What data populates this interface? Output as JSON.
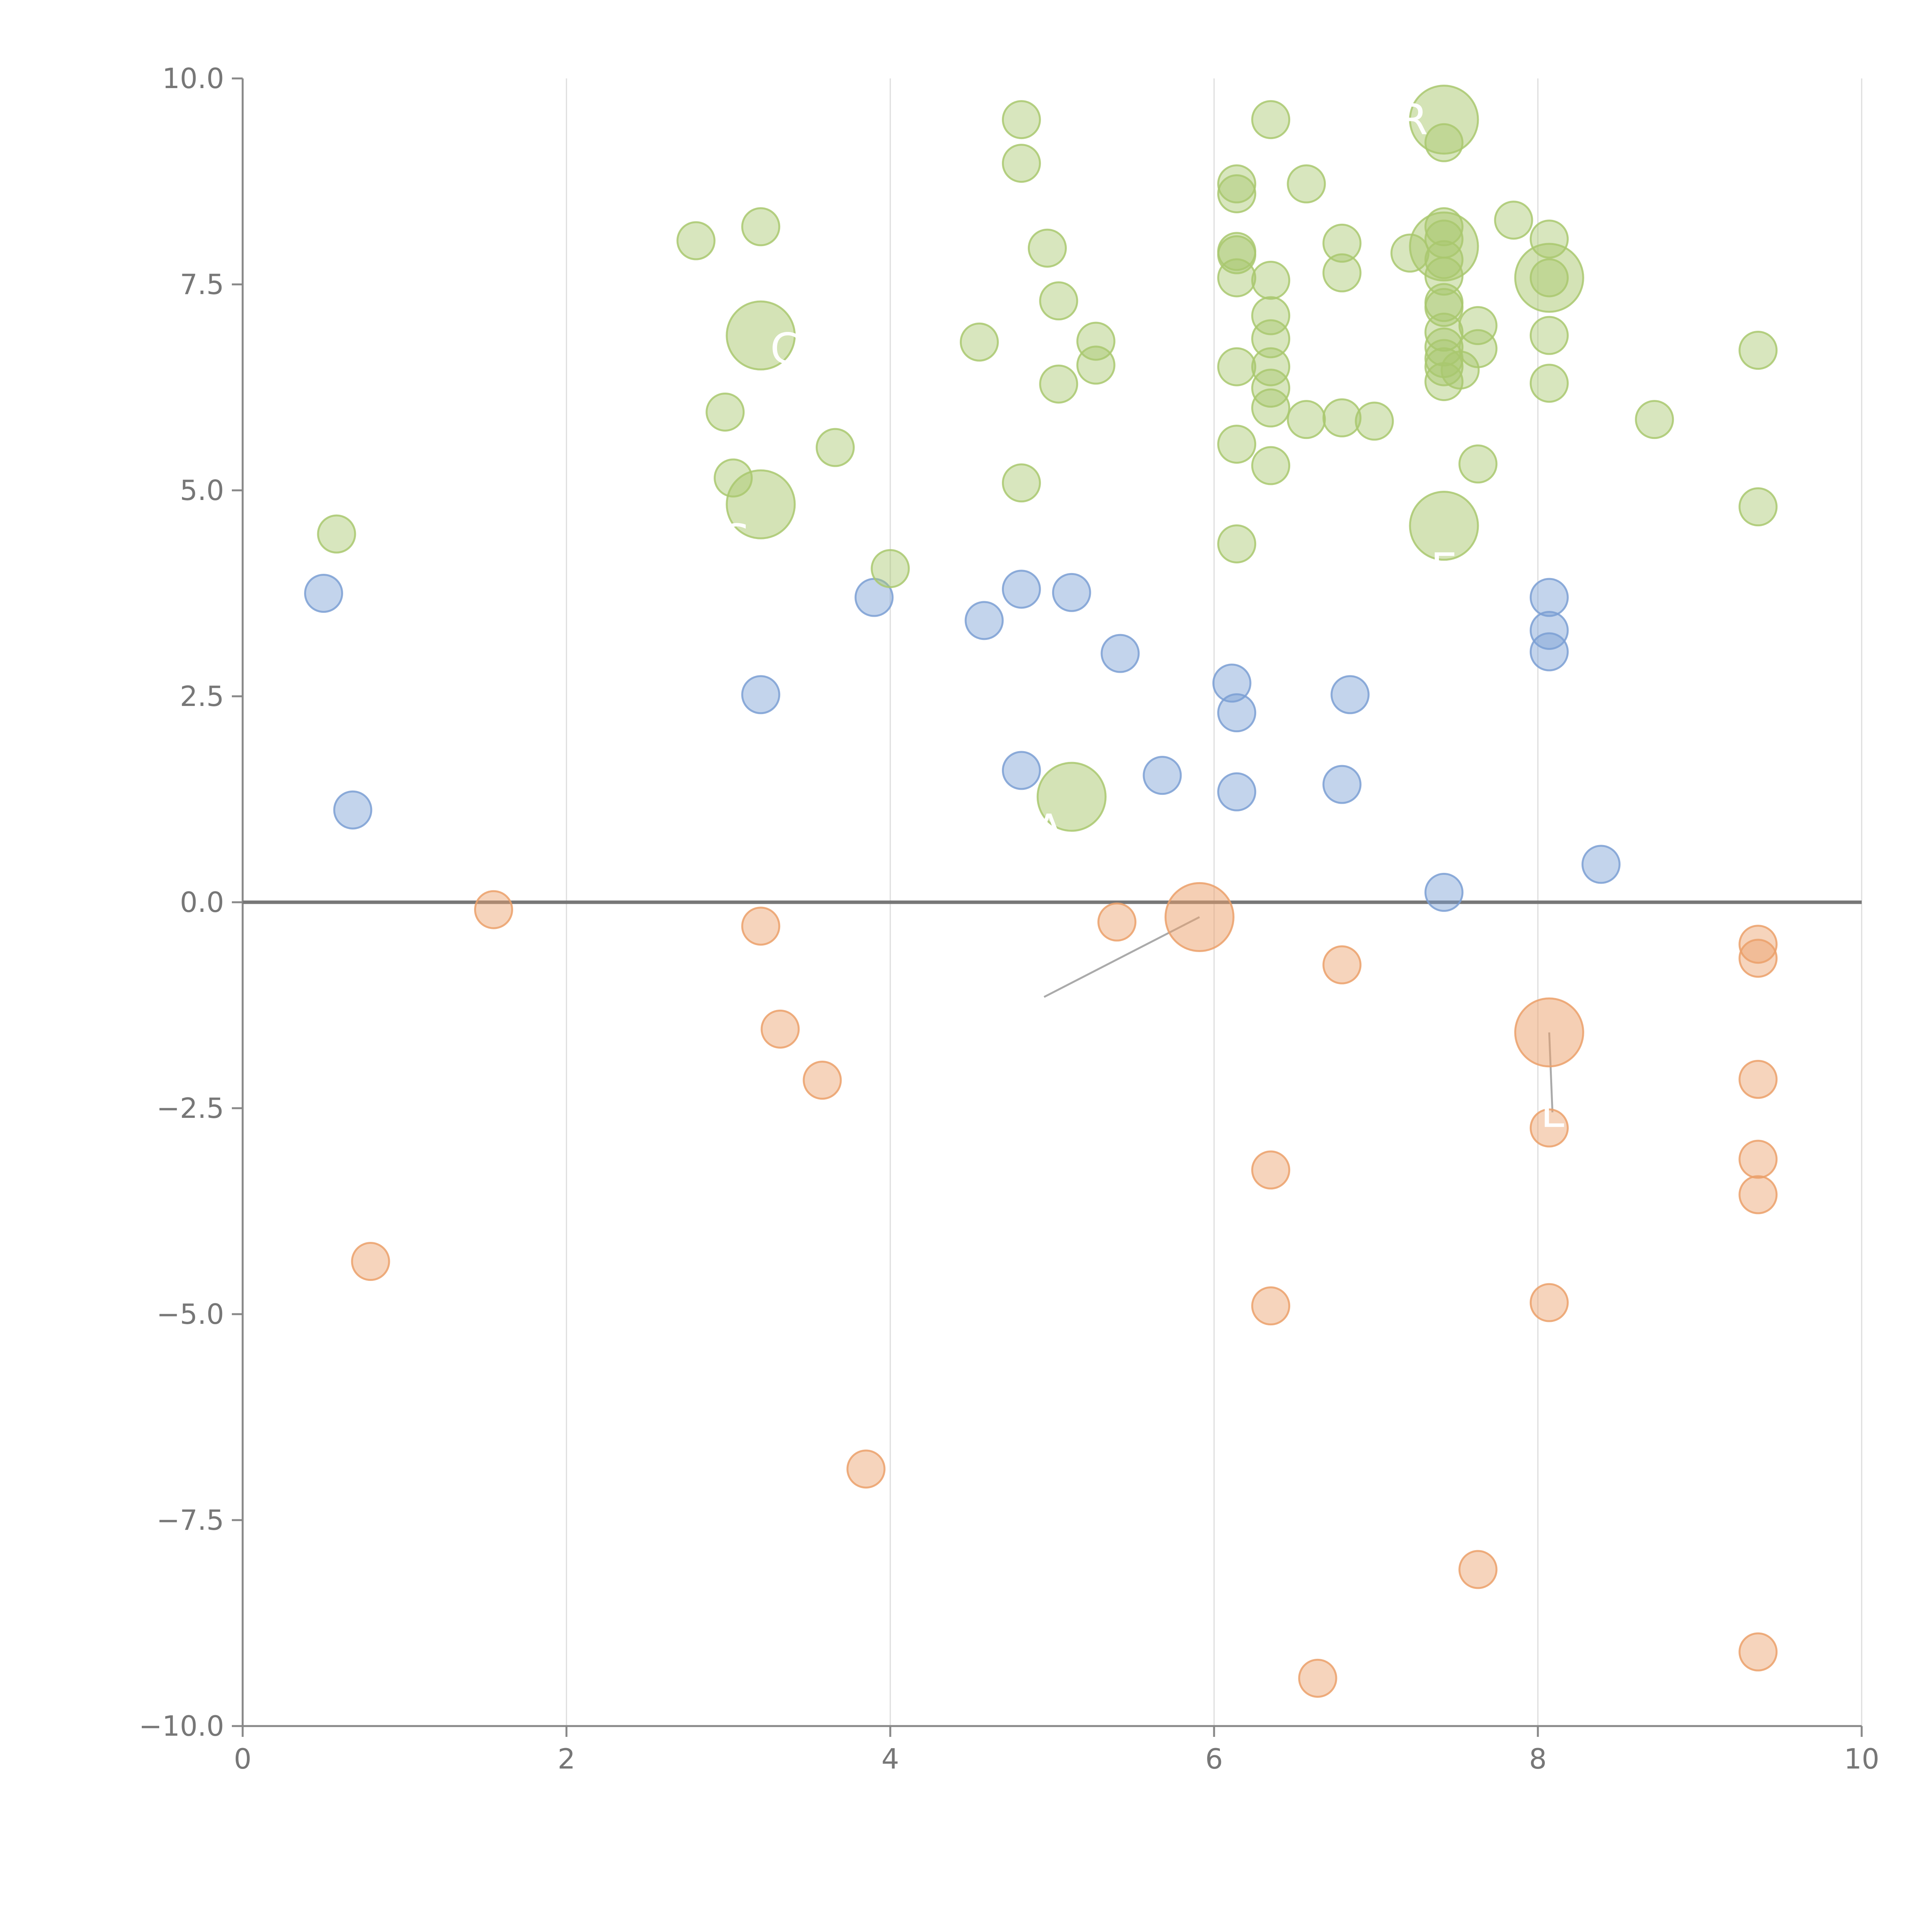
{
  "colors": {
    "blue": "#7b9fd4",
    "orange": "#eba06a",
    "green": "#a9c86e",
    "axis": "#888888",
    "grid": "#dddddd",
    "zero": "#777777",
    "text": "#777777"
  },
  "chart_data": {
    "type": "scatter",
    "title": "",
    "xlabel": "",
    "ylabel": "",
    "xlim": [
      0,
      10
    ],
    "ylim": [
      -10,
      10
    ],
    "x_ticks": [
      0,
      2,
      4,
      6,
      8,
      10
    ],
    "y_ticks": [
      -10,
      -7.5,
      -5,
      -2.5,
      0,
      2.5,
      5,
      7.5,
      10
    ],
    "x_tick_labels": [
      "0",
      "2",
      "4",
      "6",
      "8",
      "10"
    ],
    "y_tick_labels": [
      "−10.0",
      "−7.5",
      "−5.0",
      "−2.5",
      "0.0",
      "2.5",
      "5.0",
      "7.5",
      "10.0"
    ],
    "grid": "vertical",
    "zero_line": true,
    "series": [
      {
        "name": "blue",
        "color": "#7b9fd4",
        "points": [
          [
            0.5,
            3.75
          ],
          [
            0.68,
            1.12
          ],
          [
            3.2,
            2.52
          ],
          [
            3.9,
            3.7
          ],
          [
            4.58,
            3.42
          ],
          [
            4.81,
            3.8
          ],
          [
            5.12,
            3.76
          ],
          [
            4.81,
            1.6
          ],
          [
            5.42,
            3.02
          ],
          [
            5.68,
            1.54
          ],
          [
            6.11,
            2.66
          ],
          [
            6.14,
            2.3
          ],
          [
            6.14,
            1.34
          ],
          [
            6.79,
            1.43
          ],
          [
            6.84,
            2.52
          ],
          [
            7.42,
            0.12
          ],
          [
            8.07,
            3.7
          ],
          [
            8.07,
            3.3
          ],
          [
            8.07,
            3.04
          ],
          [
            8.39,
            0.46
          ]
        ]
      },
      {
        "name": "orange",
        "color": "#eba06a",
        "points": [
          [
            0.79,
            -4.36
          ],
          [
            1.55,
            -0.09
          ],
          [
            3.2,
            -0.29
          ],
          [
            3.32,
            -1.54
          ],
          [
            3.58,
            -2.16
          ],
          [
            3.85,
            -6.88
          ],
          [
            5.4,
            -0.24
          ],
          [
            6.35,
            -3.25
          ],
          [
            6.35,
            -4.9
          ],
          [
            6.64,
            -9.42
          ],
          [
            6.79,
            -0.76
          ],
          [
            7.63,
            -8.1
          ],
          [
            8.07,
            -2.74
          ],
          [
            8.07,
            -4.86
          ],
          [
            9.36,
            -0.51
          ],
          [
            9.36,
            -0.68
          ],
          [
            9.36,
            -2.15
          ],
          [
            9.36,
            -3.12
          ],
          [
            9.36,
            -3.55
          ],
          [
            9.36,
            -9.1
          ]
        ]
      },
      {
        "name": "green",
        "color": "#a9c86e",
        "points": [
          [
            0.58,
            4.47
          ],
          [
            2.8,
            8.03
          ],
          [
            3.2,
            8.2
          ],
          [
            2.98,
            5.95
          ],
          [
            3.03,
            5.15
          ],
          [
            3.66,
            5.52
          ],
          [
            4.0,
            4.05
          ],
          [
            4.55,
            6.8
          ],
          [
            4.81,
            9.5
          ],
          [
            4.81,
            8.97
          ],
          [
            4.81,
            5.09
          ],
          [
            4.97,
            7.94
          ],
          [
            5.04,
            7.3
          ],
          [
            5.04,
            6.29
          ],
          [
            5.27,
            6.81
          ],
          [
            5.27,
            6.52
          ],
          [
            6.14,
            8.72
          ],
          [
            6.14,
            8.6
          ],
          [
            6.14,
            7.9
          ],
          [
            6.14,
            7.86
          ],
          [
            6.14,
            7.58
          ],
          [
            6.14,
            6.5
          ],
          [
            6.14,
            5.56
          ],
          [
            6.14,
            4.35
          ],
          [
            6.35,
            9.5
          ],
          [
            6.35,
            7.55
          ],
          [
            6.35,
            7.12
          ],
          [
            6.35,
            6.84
          ],
          [
            6.35,
            6.5
          ],
          [
            6.35,
            6.24
          ],
          [
            6.35,
            6.0
          ],
          [
            6.35,
            5.3
          ],
          [
            6.57,
            8.72
          ],
          [
            6.57,
            5.86
          ],
          [
            6.79,
            8.0
          ],
          [
            6.79,
            7.64
          ],
          [
            6.79,
            5.88
          ],
          [
            6.99,
            5.84
          ],
          [
            7.21,
            7.88
          ],
          [
            7.42,
            9.22
          ],
          [
            7.42,
            8.2
          ],
          [
            7.42,
            8.05
          ],
          [
            7.42,
            7.8
          ],
          [
            7.42,
            7.6
          ],
          [
            7.42,
            7.28
          ],
          [
            7.42,
            7.22
          ],
          [
            7.42,
            6.92
          ],
          [
            7.42,
            6.74
          ],
          [
            7.42,
            6.6
          ],
          [
            7.42,
            6.5
          ],
          [
            7.42,
            6.32
          ],
          [
            7.52,
            6.46
          ],
          [
            7.63,
            7.0
          ],
          [
            7.63,
            6.72
          ],
          [
            7.63,
            5.32
          ],
          [
            7.85,
            8.28
          ],
          [
            8.07,
            8.05
          ],
          [
            8.07,
            7.58
          ],
          [
            8.07,
            6.88
          ],
          [
            8.07,
            6.3
          ],
          [
            8.72,
            5.86
          ],
          [
            9.36,
            6.7
          ],
          [
            9.36,
            4.8
          ]
        ]
      }
    ],
    "highlighted": [
      {
        "x": 5.91,
        "y": -0.18,
        "color": "#eba06a",
        "label": "",
        "label_x": 4.95,
        "label_y": -1.15
      },
      {
        "x": 8.07,
        "y": -1.58,
        "color": "#eba06a",
        "label": "L",
        "label_x": 8.09,
        "label_y": -2.55
      },
      {
        "x": 5.12,
        "y": 1.28,
        "color": "#a9c86e",
        "label": "A",
        "label_x": 4.98,
        "label_y": 0.88
      },
      {
        "x": 3.2,
        "y": 4.83,
        "color": "#a9c86e",
        "label": "S",
        "label_x": 3.05,
        "label_y": 4.4
      },
      {
        "x": 3.2,
        "y": 6.88,
        "color": "#a9c86e",
        "label": "C",
        "label_x": 3.35,
        "label_y": 6.72
      },
      {
        "x": 7.42,
        "y": 4.57,
        "color": "#a9c86e",
        "label": "E",
        "label_x": 7.42,
        "label_y": 4.05
      },
      {
        "x": 7.42,
        "y": 9.5,
        "color": "#a9c86e",
        "label": "R",
        "label_x": 7.23,
        "label_y": 9.5
      },
      {
        "x": 7.42,
        "y": 7.96,
        "color": "#a9c86e",
        "label": "",
        "label_x": 7.72,
        "label_y": 8.45
      },
      {
        "x": 8.07,
        "y": 7.58,
        "color": "#a9c86e",
        "label": "",
        "label_x": 8.32,
        "label_y": 7.5
      }
    ]
  }
}
